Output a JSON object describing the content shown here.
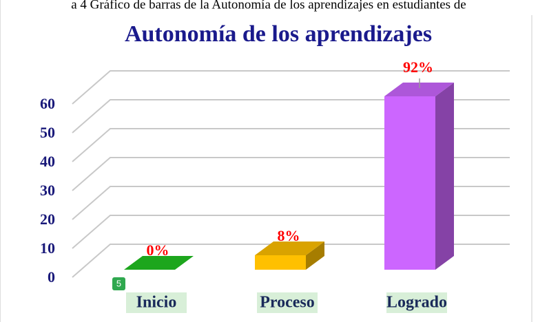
{
  "caption": "a 4 Gráfico de barras de la Autonomía de los aprendizajes en estudiantes de",
  "badge": "5",
  "chart_data": {
    "type": "bar3d",
    "title": "Autonomía de los aprendizajes",
    "categories": [
      "Inicio",
      "Proceso",
      "Logrado"
    ],
    "values": [
      0,
      5,
      60
    ],
    "value_labels": [
      "0%",
      "8%",
      "92%"
    ],
    "colors": [
      "#22c322",
      "#ffc000",
      "#cc66ff"
    ],
    "ylim": [
      0,
      60
    ],
    "yticks": [
      0,
      10,
      20,
      30,
      40,
      50,
      60
    ],
    "grid": true
  }
}
